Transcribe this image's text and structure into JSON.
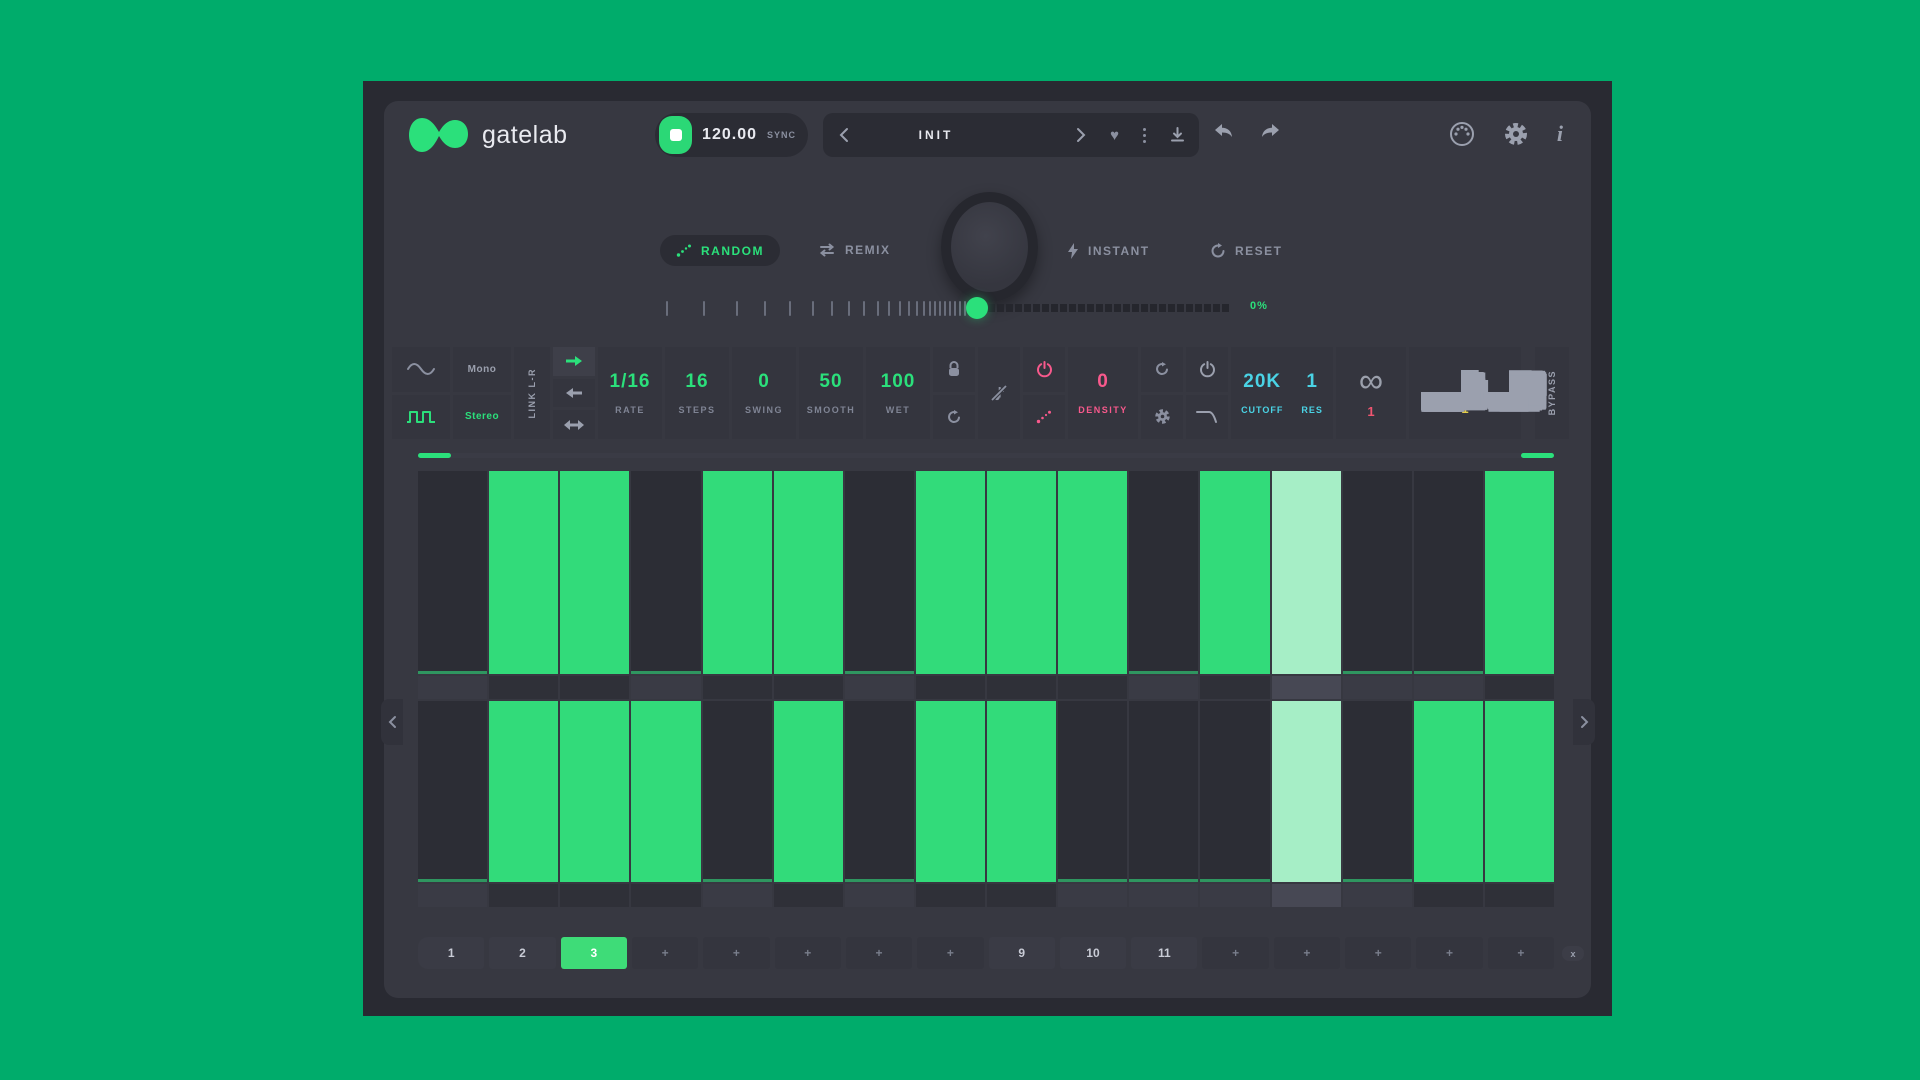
{
  "colors": {
    "accent": "#2BE07B",
    "bar": "#32DB7A",
    "bar_highlight": "#A6EEC6",
    "pink": "#F8598C",
    "cyan": "#4AD3E5",
    "yellow": "#E3CE4B",
    "red": "#EF5570",
    "background": "#00AC6B"
  },
  "header": {
    "brand": "gatelab",
    "transport": {
      "bpm": "120.00",
      "sync_label": "SYNC"
    },
    "preset": {
      "name": "INIT"
    }
  },
  "mode_row": {
    "random_label": "RANDOM",
    "remix_label": "REMIX",
    "instant_label": "INSTANT",
    "reset_label": "RESET"
  },
  "macro": {
    "value_label": "0%"
  },
  "toolbar": {
    "channel": {
      "mono": "Mono",
      "stereo": "Stereo",
      "selected": "Stereo"
    },
    "link_label": "LINK L-R",
    "params": [
      {
        "label": "RATE",
        "value": "1/16"
      },
      {
        "label": "STEPS",
        "value": "16"
      },
      {
        "label": "SWING",
        "value": "0"
      },
      {
        "label": "SMOOTH",
        "value": "50"
      },
      {
        "label": "WET",
        "value": "100"
      }
    ],
    "density": {
      "label": "DENSITY",
      "value": "0"
    },
    "filter": {
      "cutoff_label": "CUTOFF",
      "cutoff_value": "20K",
      "res_label": "RES",
      "res_value": "1"
    },
    "loop": {
      "symbol": "∞",
      "value": "1"
    },
    "dissolve": {
      "value": "1"
    },
    "bypass_label": "BYPASS"
  },
  "sequencer": {
    "steps": 16,
    "active_step": 13,
    "rows": [
      {
        "name": "upper",
        "gates": [
          0,
          1,
          1,
          0,
          1,
          1,
          0,
          1,
          1,
          1,
          0,
          1,
          1,
          0,
          0,
          1
        ]
      },
      {
        "name": "lower",
        "gates": [
          0,
          1,
          1,
          1,
          0,
          1,
          0,
          1,
          1,
          0,
          0,
          0,
          1,
          0,
          1,
          1
        ]
      }
    ]
  },
  "patterns": {
    "items": [
      "1",
      "2",
      "3",
      "+",
      "+",
      "+",
      "+",
      "+",
      "9",
      "10",
      "11",
      "+",
      "+",
      "+",
      "+",
      "+"
    ],
    "selected_index": 2,
    "delete_label": "x"
  }
}
